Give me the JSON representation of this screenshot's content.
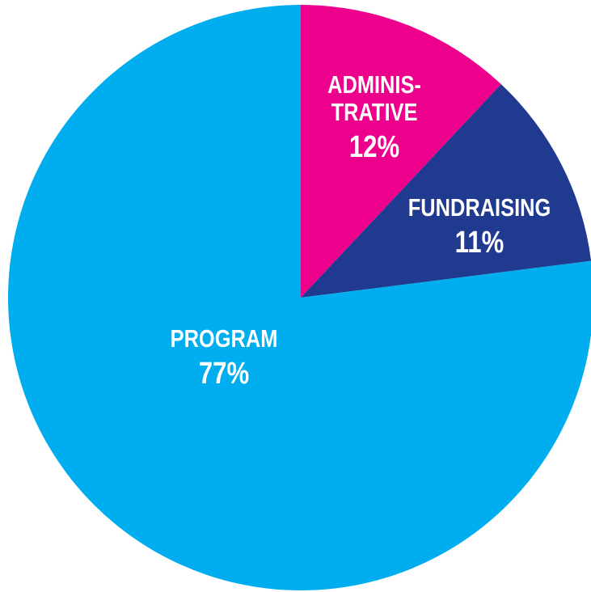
{
  "chart_data": {
    "type": "pie",
    "categories": [
      "ADMINIS-\nTRATIVE",
      "FUNDRAISING",
      "PROGRAM"
    ],
    "values": [
      12,
      11,
      77
    ],
    "value_labels": [
      "12%",
      "11%",
      "77%"
    ],
    "colors": [
      "#ec008c",
      "#203a8f",
      "#00aeef"
    ]
  }
}
